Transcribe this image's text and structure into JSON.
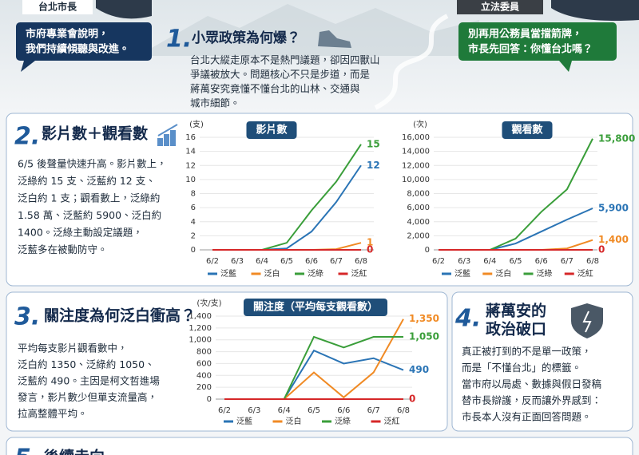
{
  "header": {
    "left_label": "台北市長",
    "left_bubble": [
      "市府專業會說明，",
      "我們持續傾聽與改進。"
    ],
    "right_label": "立法委員",
    "right_bubble": [
      "別再用公務員當擋箭牌，",
      "市長先回答：你懂台北嗎？"
    ]
  },
  "sections": [
    {
      "number": "1.",
      "title": "小眾政策為何爆？",
      "lines": [
        "台北大縱走原本不是熱門議題，卻因四獸山",
        "爭議被放大。問題核心不只是步道，而是",
        "蔣萬安究竟懂不懂台北的山林、交通與",
        "城市細節。"
      ]
    },
    {
      "number": "2.",
      "title": "影片數＋觀看數",
      "lines": [
        "6/5 後聲量快速升高。影片數上，",
        "泛綠約 15 支、泛藍約 12 支、",
        "泛白約 1 支；觀看數上，泛綠約",
        "1.58 萬、泛藍約 5900、泛白約",
        "1400。泛綠主動設定議題，",
        "泛藍多在被動防守。"
      ]
    },
    {
      "number": "3.",
      "title": "關注度為何泛白衝高？",
      "lines": [
        "平均每支影片觀看數中，",
        "泛白約 1350、泛綠約 1050、",
        "泛藍約 490。主因是柯文哲進場",
        "發言，影片數少但單支流量高，",
        "拉高整體平均。"
      ]
    },
    {
      "number": "4.",
      "title": [
        "蔣萬安的",
        "政治破口"
      ],
      "lines": [
        "真正被打到的不是單一政策，",
        "而是「不懂台北」的標籤。",
        "當市府以局處、數據與假日發稿",
        "替市長辯護，反而讓外界感到：",
        "市長本人沒有正面回答問題。"
      ]
    },
    {
      "number": "5.",
      "title": "後續走向"
    }
  ],
  "chart_data": [
    {
      "type": "line",
      "title": "影片數",
      "y_unit": "(支)",
      "categories": [
        "6/2",
        "6/3",
        "6/4",
        "6/5",
        "6/6",
        "6/7",
        "6/8"
      ],
      "series": [
        {
          "name": "泛藍",
          "color": "#2a74b5",
          "values": [
            0,
            0,
            0,
            0.2,
            2.6,
            6.8,
            12
          ]
        },
        {
          "name": "泛白",
          "color": "#f08a24",
          "values": [
            0,
            0,
            0,
            0,
            0,
            0.1,
            1
          ]
        },
        {
          "name": "泛綠",
          "color": "#3a9e3a",
          "values": [
            0,
            0,
            0,
            1,
            5.6,
            9.7,
            15
          ]
        },
        {
          "name": "泛紅",
          "color": "#d62728",
          "values": [
            0,
            0,
            0,
            0,
            0,
            0,
            0
          ]
        }
      ],
      "ylim": [
        0,
        16
      ],
      "yticks": [
        0,
        2,
        4,
        6,
        8,
        10,
        12,
        14,
        16
      ]
    },
    {
      "type": "line",
      "title": "觀看數",
      "y_unit": "(次)",
      "categories": [
        "6/2",
        "6/3",
        "6/4",
        "6/5",
        "6/6",
        "6/7",
        "6/8"
      ],
      "series": [
        {
          "name": "泛藍",
          "color": "#2a74b5",
          "values": [
            0,
            0,
            0,
            900,
            2600,
            4300,
            5900
          ],
          "value_labels": [
            null,
            null,
            null,
            null,
            null,
            null,
            "5,900"
          ]
        },
        {
          "name": "泛白",
          "color": "#f08a24",
          "values": [
            0,
            0,
            0,
            0,
            0,
            200,
            1400
          ],
          "value_labels": [
            null,
            null,
            null,
            null,
            null,
            null,
            "1,400"
          ]
        },
        {
          "name": "泛綠",
          "color": "#3a9e3a",
          "values": [
            0,
            0,
            0,
            1600,
            5400,
            8600,
            15800
          ],
          "value_labels": [
            null,
            null,
            null,
            null,
            null,
            null,
            "15,800"
          ]
        },
        {
          "name": "泛紅",
          "color": "#d62728",
          "values": [
            0,
            0,
            0,
            0,
            0,
            0,
            0
          ]
        }
      ],
      "ylim": [
        0,
        16000
      ],
      "yticks": [
        0,
        {
          "value": 2000,
          "label": "2,000"
        },
        {
          "value": 4000,
          "label": "4,000"
        },
        {
          "value": 6000,
          "label": "6,000"
        },
        {
          "value": 8000,
          "label": "8,000"
        },
        {
          "value": 10000,
          "label": "10,000"
        },
        {
          "value": 12000,
          "label": "12,000"
        },
        {
          "value": 14000,
          "label": "14,000"
        },
        {
          "value": 16000,
          "label": "16,000"
        }
      ]
    },
    {
      "type": "line",
      "title": "關注度（平均每支觀看數）",
      "y_unit": "(次/支)",
      "categories": [
        "6/2",
        "6/3",
        "6/4",
        "6/5",
        "6/6",
        "6/7",
        "6/8"
      ],
      "series": [
        {
          "name": "泛藍",
          "color": "#2a74b5",
          "values": [
            0,
            0,
            0,
            820,
            600,
            690,
            490
          ]
        },
        {
          "name": "泛白",
          "color": "#f08a24",
          "values": [
            0,
            0,
            0,
            450,
            30,
            450,
            1350
          ],
          "value_labels": [
            null,
            null,
            null,
            null,
            null,
            null,
            "1,350"
          ]
        },
        {
          "name": "泛綠",
          "color": "#3a9e3a",
          "values": [
            0,
            0,
            0,
            1050,
            870,
            1050,
            1050
          ],
          "value_labels": [
            null,
            null,
            null,
            null,
            null,
            null,
            "1,050"
          ]
        },
        {
          "name": "泛紅",
          "color": "#d62728",
          "values": [
            0,
            0,
            0,
            0,
            0,
            0,
            0
          ]
        }
      ],
      "ylim": [
        0,
        1400
      ],
      "yticks": [
        0,
        200,
        400,
        600,
        800,
        {
          "value": 1000,
          "label": "1,000"
        },
        {
          "value": 1200,
          "label": "1,200"
        },
        {
          "value": 1400,
          "label": "1,400"
        }
      ]
    }
  ]
}
